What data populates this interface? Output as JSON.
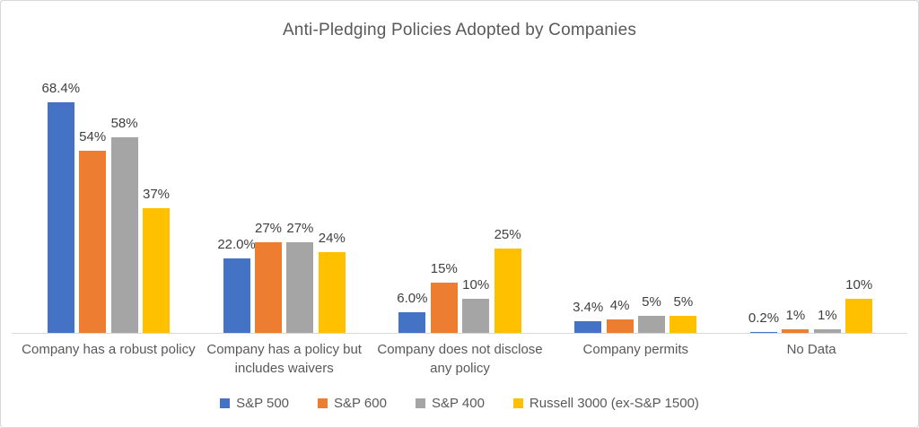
{
  "title": "Anti-Pledging Policies Adopted by Companies",
  "colors": {
    "sp500_blue": "#4472C4",
    "sp600_orange": "#ED7D31",
    "sp400_gray": "#A5A5A5",
    "russell_yellow": "#FFC000",
    "axis_line": "#D9D9D9",
    "title_text": "#595959",
    "category_text": "#595959",
    "value_text": "#404040"
  },
  "chart_data": {
    "type": "bar",
    "title": "Anti-Pledging Policies Adopted by Companies",
    "categories": [
      "Company has a robust policy",
      "Company has a policy but includes waivers",
      "Company does not disclose any policy",
      "Company permits",
      "No Data"
    ],
    "series": [
      {
        "name": "S&P 500",
        "color": "#4472C4",
        "values": [
          68.4,
          22.0,
          6.0,
          3.4,
          0.2
        ],
        "labels": [
          "68.4%",
          "22.0%",
          "6.0%",
          "3.4%",
          "0.2%"
        ]
      },
      {
        "name": "S&P 600",
        "color": "#ED7D31",
        "values": [
          54,
          27,
          15,
          4,
          1
        ],
        "labels": [
          "54%",
          "27%",
          "15%",
          "4%",
          "1%"
        ]
      },
      {
        "name": "S&P 400",
        "color": "#A5A5A5",
        "values": [
          58,
          27,
          10,
          5,
          1
        ],
        "labels": [
          "58%",
          "27%",
          "10%",
          "5%",
          "1%"
        ]
      },
      {
        "name": "Russell 3000 (ex-S&P 1500)",
        "color": "#FFC000",
        "values": [
          37,
          24,
          25,
          5,
          10
        ],
        "labels": [
          "37%",
          "24%",
          "25%",
          "5%",
          "10%"
        ]
      }
    ],
    "ylim": [
      0,
      80
    ],
    "grid": false,
    "y_axis_visible": false,
    "data_labels": true,
    "legend_position": "bottom"
  }
}
